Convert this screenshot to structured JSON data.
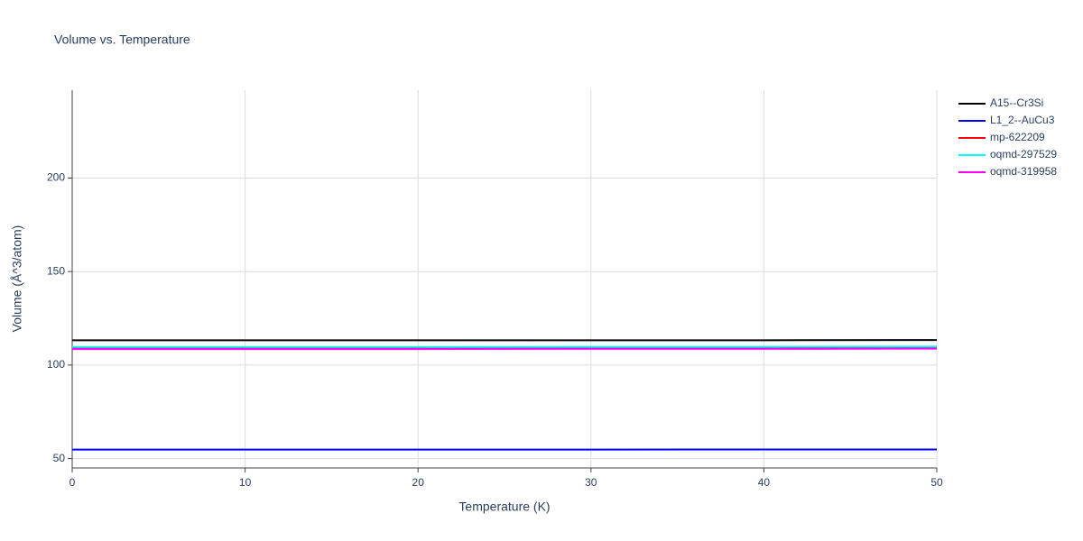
{
  "chart_data": {
    "type": "line",
    "title": "Volume vs. Temperature",
    "x_label": "Temperature (K)",
    "y_label": "Volume (Å^3/atom)",
    "x": [
      0,
      10,
      20,
      30,
      40,
      50
    ],
    "series": [
      {
        "name": "A15--Cr3Si",
        "color": "#000000",
        "values": [
          113.3,
          113.3,
          113.3,
          113.3,
          113.3,
          113.4
        ]
      },
      {
        "name": "L1_2--AuCu3",
        "color": "#0000ff",
        "values": [
          54.8,
          54.8,
          54.8,
          54.8,
          54.9,
          54.9
        ]
      },
      {
        "name": "mp-622209",
        "color": "#ff0000",
        "values": [
          109.4,
          109.4,
          109.4,
          109.5,
          109.5,
          109.6
        ]
      },
      {
        "name": "oqmd-297529",
        "color": "#00ffff",
        "values": [
          109.7,
          109.7,
          109.7,
          109.8,
          109.8,
          109.9
        ]
      },
      {
        "name": "oqmd-319958",
        "color": "#ff00ff",
        "values": [
          108.6,
          108.6,
          108.6,
          108.7,
          108.7,
          108.8
        ]
      }
    ],
    "xlim": [
      0,
      50
    ],
    "xticks": [
      0,
      10,
      20,
      30,
      40,
      50
    ],
    "ylim": [
      45,
      247
    ],
    "yticks": [
      50,
      100,
      150,
      200
    ],
    "grid": true,
    "legend": "outside-right"
  }
}
